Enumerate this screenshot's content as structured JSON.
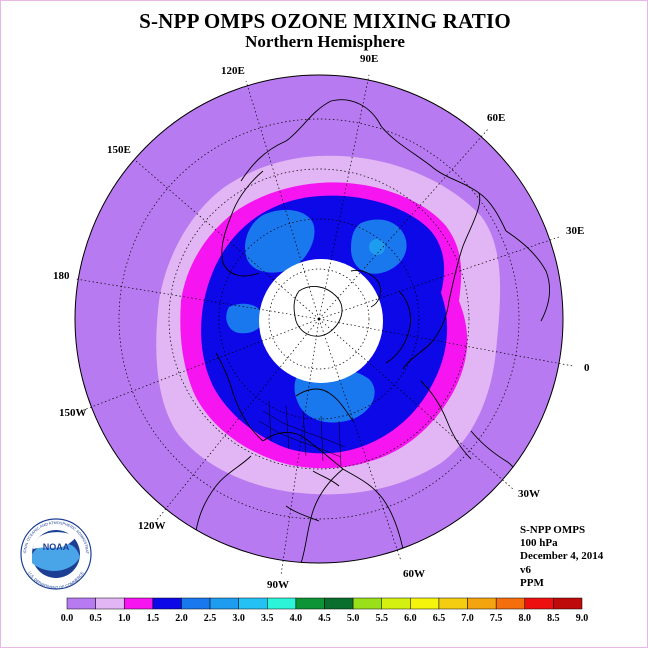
{
  "header": {
    "title": "S-NPP OMPS OZONE MIXING RATIO",
    "subtitle": "Northern Hemisphere"
  },
  "longitude_labels": {
    "e90": "90E",
    "e60": "60E",
    "e30": "30E",
    "zero": "0",
    "w30": "30W",
    "w60": "60W",
    "w90": "90W",
    "w120": "120W",
    "w150": "150W",
    "d180": "180",
    "e150": "150E",
    "e120": "120E"
  },
  "info_block": {
    "instrument": "S-NPP OMPS",
    "level": "100 hPa",
    "date": "December 4, 2014",
    "version": "v6",
    "units": "PPM"
  },
  "logo": {
    "text": "NOAA",
    "ring_text": "NATIONAL OCEANIC AND ATMOSPHERIC ADMINISTRATION",
    "ring_text_bottom": "U.S. DEPARTMENT OF COMMERCE"
  },
  "colorbar": {
    "ticks": [
      "0.0",
      "0.5",
      "1.0",
      "1.5",
      "2.0",
      "2.5",
      "3.0",
      "3.5",
      "4.0",
      "4.5",
      "5.0",
      "5.5",
      "6.0",
      "6.5",
      "7.0",
      "7.5",
      "8.0",
      "8.5",
      "9.0"
    ],
    "colors": [
      "#b87af0",
      "#e2b6f4",
      "#f614f0",
      "#0c08e8",
      "#1a78ee",
      "#1e9cf0",
      "#24c2f4",
      "#2cf4d8",
      "#0c9436",
      "#0a6e2c",
      "#9ae01a",
      "#d4f010",
      "#f4f40c",
      "#f4cc10",
      "#f4a40e",
      "#f46e0c",
      "#ee1010",
      "#be0a0a"
    ]
  },
  "map_colors": {
    "band_0_0.5": "#b87af0",
    "band_0.5_1.0": "#e2b6f4",
    "band_1.0_1.5": "#f614f0",
    "band_1.5_2.0": "#0c08e8",
    "band_2.0_2.5": "#1a78ee",
    "band_2.5_3.0": "#1e9cf0",
    "no_data": "#ffffff"
  }
}
